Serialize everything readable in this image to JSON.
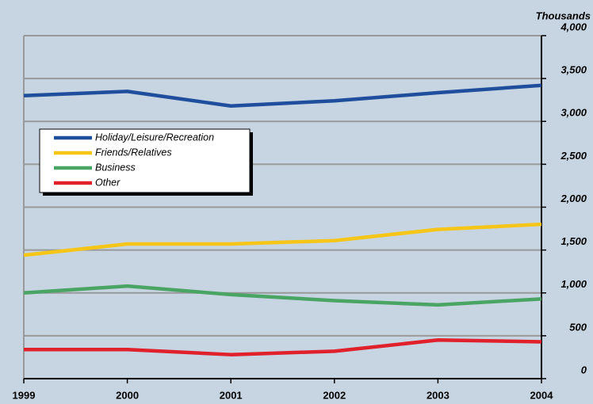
{
  "chart_data": {
    "type": "line",
    "y_label": "Thousands",
    "categories": [
      "1999",
      "2000",
      "2001",
      "2002",
      "2003",
      "2004"
    ],
    "series": [
      {
        "name": "Holiday/Leisure/Recreation",
        "color": "#1f4e9c",
        "values": [
          3300,
          3350,
          3180,
          3240,
          3335,
          3420
        ]
      },
      {
        "name": "Friends/Relatives",
        "color": "#f5c518",
        "values": [
          1440,
          1570,
          1570,
          1610,
          1740,
          1800
        ]
      },
      {
        "name": "Business",
        "color": "#4aa564",
        "values": [
          1000,
          1080,
          980,
          910,
          860,
          930
        ]
      },
      {
        "name": "Other",
        "color": "#e0202a",
        "values": [
          340,
          340,
          280,
          320,
          450,
          430
        ]
      }
    ],
    "ylim": [
      0,
      4000
    ],
    "yticks": [
      0,
      500,
      {
        "value": 1000,
        "label": "1,000"
      },
      {
        "value": 1500,
        "label": "1,500"
      },
      {
        "value": 2000,
        "label": "2,000"
      },
      {
        "value": 2500,
        "label": "2,500"
      },
      {
        "value": 3000,
        "label": "3,000"
      },
      {
        "value": 3500,
        "label": "3,500"
      },
      {
        "value": 4000,
        "label": "4,000"
      }
    ],
    "grid": true,
    "legend": "upper left"
  }
}
